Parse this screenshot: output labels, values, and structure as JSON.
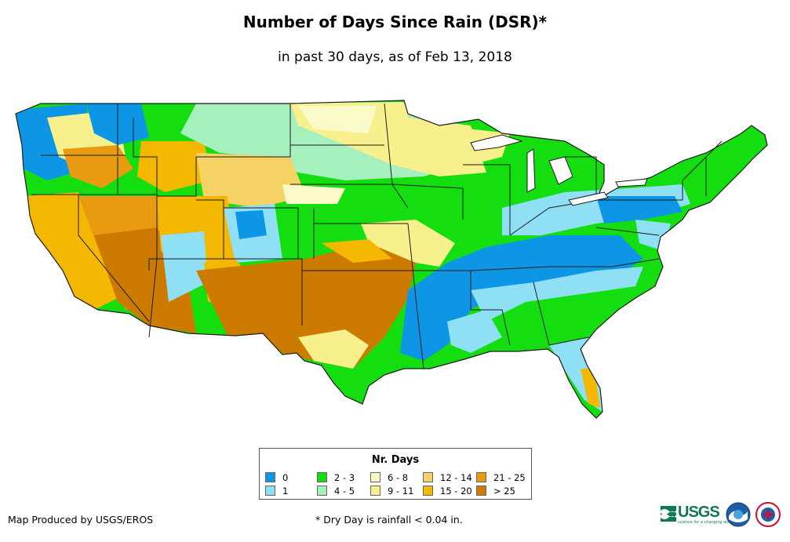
{
  "title": "Number of Days Since Rain (DSR)*",
  "subtitle": "in past 30 days, as of Feb 13, 2018",
  "legend": {
    "title": "Nr. Days",
    "items": [
      {
        "label": "0",
        "color": "#0d96e6"
      },
      {
        "label": "1",
        "color": "#8fe0f5"
      },
      {
        "label": "2 - 3",
        "color": "#14de0f"
      },
      {
        "label": "4 - 5",
        "color": "#a6f0bd"
      },
      {
        "label": "6 - 8",
        "color": "#fafac8"
      },
      {
        "label": "9 - 11",
        "color": "#f7f08c"
      },
      {
        "label": "12 - 14",
        "color": "#f5d266"
      },
      {
        "label": "15 - 20",
        "color": "#f5b800"
      },
      {
        "label": "21 - 25",
        "color": "#e89a10"
      },
      {
        "label": "> 25",
        "color": "#cc7a00"
      }
    ]
  },
  "footer": {
    "producer": "Map Produced by USGS/EROS",
    "footnote": "* Dry Day is rainfall < 0.04 in."
  },
  "logos": {
    "usgs": "USGS",
    "usgs_tagline": "science for a changing world",
    "noaa_icon": "noaa-logo-icon",
    "nws_icon": "nws-logo-icon"
  }
}
